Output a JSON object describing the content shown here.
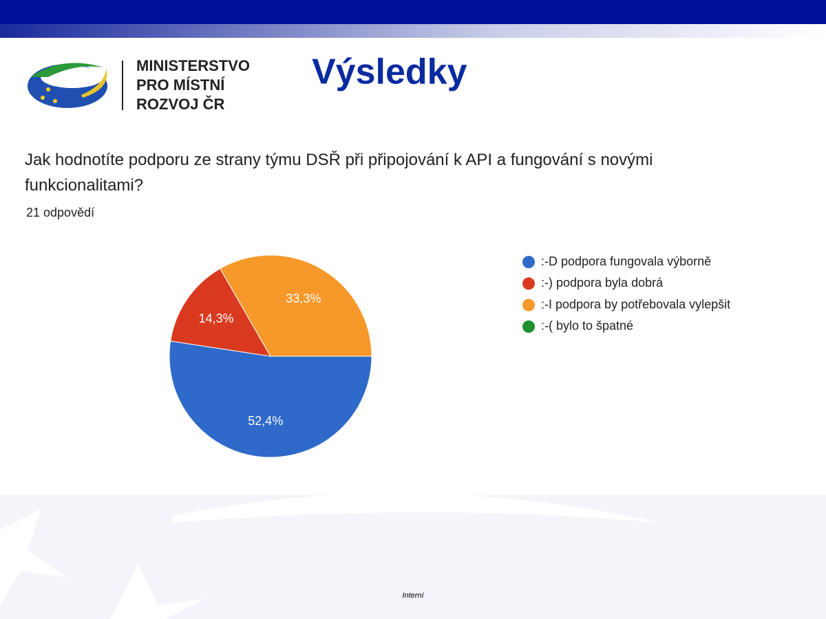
{
  "header": {
    "logo_lines": [
      "MINISTERSTVO",
      "PRO MÍSTNÍ",
      "ROZVOJ ČR"
    ],
    "title": "Výsledky"
  },
  "chart_data": {
    "type": "pie",
    "title": "Jak hodnotíte podporu ze strany týmu DSŘ při připojování k API a fungování s novými funkcionalitami?",
    "subtitle": "21 odpovědí",
    "categories": [
      ":-D podpora fungovala výborně",
      ":-) podpora byla dobrá",
      ":-I podpora by potřebovala vylepšit",
      ":-( bylo to špatné"
    ],
    "values": [
      52.4,
      14.3,
      33.3,
      0
    ],
    "value_labels": [
      "52,4%",
      "14,3%",
      "33,3%",
      null
    ],
    "colors": [
      "#2f69c9",
      "#d93a1f",
      "#f7982a",
      "#1e8f2c"
    ],
    "legend": "right"
  },
  "footer": {
    "text": "Interní"
  }
}
